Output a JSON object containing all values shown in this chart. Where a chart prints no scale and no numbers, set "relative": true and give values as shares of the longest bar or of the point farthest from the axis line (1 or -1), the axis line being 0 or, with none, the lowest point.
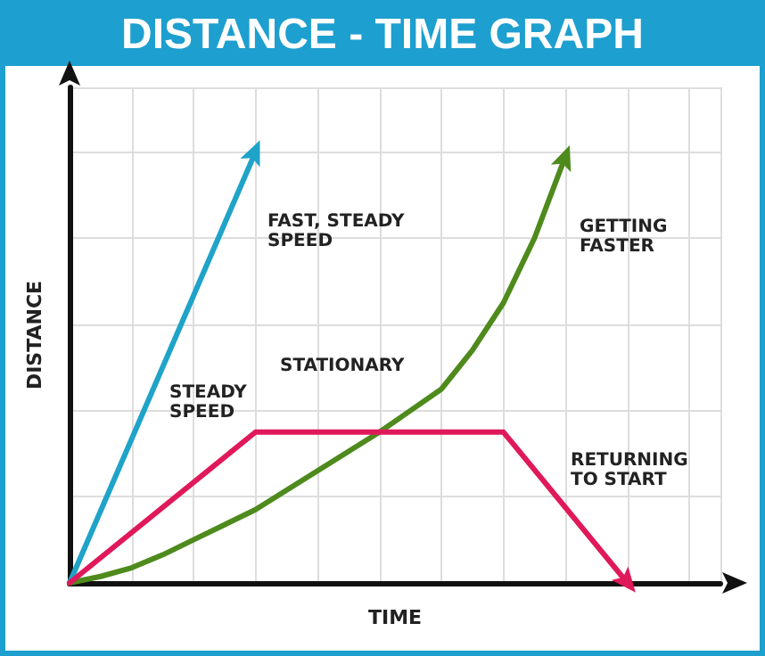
{
  "chart_data": {
    "type": "line",
    "title": "DISTANCE - TIME GRAPH",
    "xlabel": "TIME",
    "ylabel": "DISTANCE",
    "relative": true,
    "grid": true,
    "line_style": "solid",
    "categories": [
      null,
      null,
      null,
      null,
      null,
      null,
      null,
      null,
      null,
      null,
      null,
      null,
      null,
      null,
      null,
      null,
      null,
      null,
      null,
      null,
      null,
      null
    ],
    "series": [
      {
        "color": "#1fa3c9",
        "values": [
          0,
          null,
          null,
          null,
          null,
          null,
          1,
          null,
          null,
          null,
          null,
          null,
          null,
          null,
          null,
          null,
          null,
          null,
          null,
          null,
          null,
          null
        ]
      },
      {
        "color": "#4e8a1c",
        "values": [
          0,
          0.015,
          0.035,
          0.065,
          0.1,
          0.135,
          0.17,
          0.215,
          0.26,
          0.305,
          0.35,
          0.4,
          0.45,
          0.54,
          0.65,
          0.8,
          0.99,
          null,
          null,
          null,
          null,
          null
        ]
      },
      {
        "color": "#e0195a",
        "values": [
          0,
          null,
          null,
          null,
          null,
          null,
          0.35,
          null,
          null,
          null,
          null,
          null,
          null,
          null,
          0.35,
          null,
          null,
          null,
          0,
          null,
          null,
          null
        ]
      }
    ],
    "annotations": [
      "FAST, STEADY\nSPEED",
      "GETTING\nFASTER",
      "STEADY\nSPEED",
      "STATIONARY",
      "RETURNING\nTO START"
    ]
  }
}
